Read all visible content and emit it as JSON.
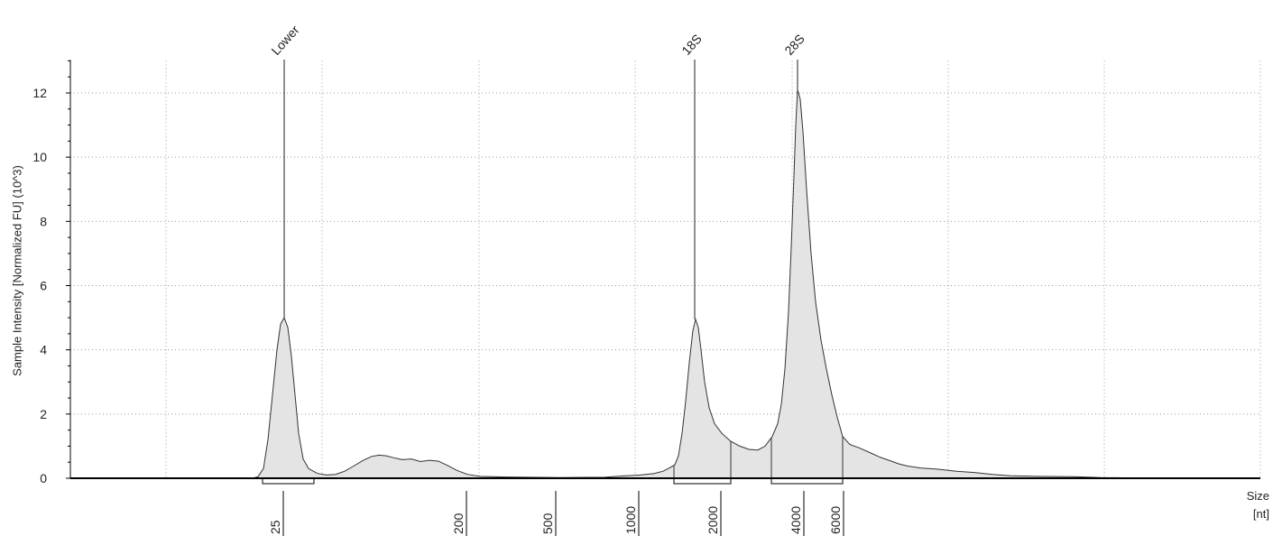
{
  "chart_data": {
    "type": "area",
    "title": "",
    "ylabel": "Sample Intensity [Normalized FU] (10^3)",
    "xlabel": "Size",
    "xunit": "[nt]",
    "ylim": [
      0,
      13
    ],
    "y_ticks": [
      0,
      2,
      4,
      6,
      8,
      10,
      12
    ],
    "x_tick_labels": [
      "25",
      "200",
      "500",
      "1000",
      "2000",
      "4000",
      "6000"
    ],
    "grid": true,
    "peak_labels": [
      "Lower",
      "18S",
      "28S"
    ],
    "trace": [
      [
        25,
        5.0
      ],
      [
        200,
        0.05
      ],
      [
        500,
        0.02
      ],
      [
        1000,
        0.1
      ],
      [
        2000,
        1.1
      ],
      [
        4000,
        9.0
      ],
      [
        6000,
        1.0
      ]
    ],
    "colors": {
      "fill": "#e4e4e4",
      "line": "#333333",
      "grid": "#9a9a9a",
      "axis": "#000000"
    }
  }
}
